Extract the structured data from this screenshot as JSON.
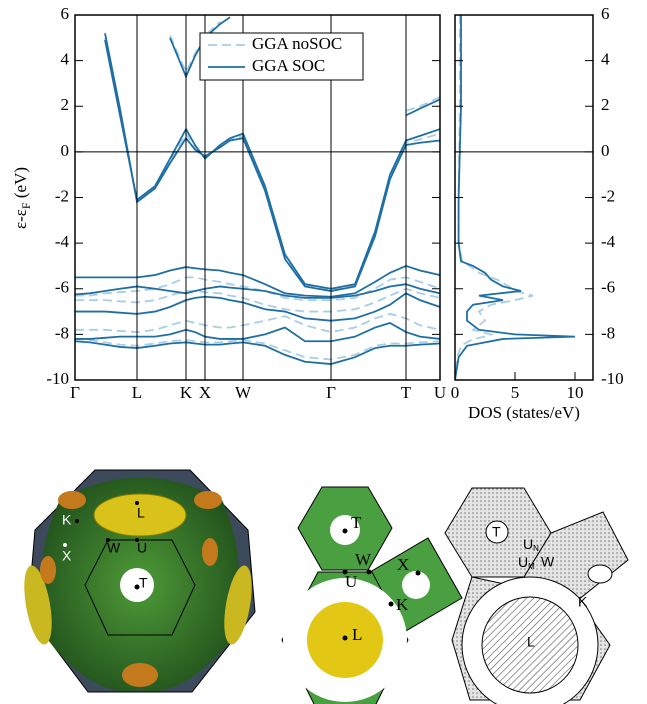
{
  "chart_data": [
    {
      "type": "line",
      "y_label": [
        "ε-ε",
        "F",
        " (eV)"
      ],
      "x": [
        0,
        0.15,
        0.3,
        0.45,
        0.62,
        0.8,
        0.95,
        1.11,
        1.2,
        1.3,
        1.45,
        1.55,
        1.68,
        1.9,
        2.1,
        2.3,
        2.56,
        2.8,
        3.0,
        3.15,
        3.31,
        3.45,
        3.65
      ],
      "xlim": [
        0,
        3.65
      ],
      "xticks": [
        {
          "value": 0,
          "label": "Γ"
        },
        {
          "value": 0.62,
          "label": "L"
        },
        {
          "value": 1.11,
          "label": "K"
        },
        {
          "value": 1.3,
          "label": "X"
        },
        {
          "value": 1.68,
          "label": "W"
        },
        {
          "value": 2.56,
          "label": "Γ"
        },
        {
          "value": 3.31,
          "label": "T"
        },
        {
          "value": 3.65,
          "label": "U"
        }
      ],
      "ylim": [
        -10,
        6
      ],
      "yticks": [
        -10,
        -8,
        -6,
        -4,
        -2,
        0,
        2,
        4,
        6
      ],
      "legend": "upper-center",
      "series": [
        {
          "name": "GGA noSOC",
          "color": "#a9cde6",
          "dashed": true,
          "bands": [
            [
              -8.2,
              -8.25,
              -8.35,
              -8.45,
              -8.5,
              -8.4,
              -8.3,
              -8.25,
              -8.3,
              -8.35,
              -8.35,
              -8.3,
              -8.25,
              -8.4,
              -8.7,
              -9.0,
              -9.1,
              -8.9,
              -8.5,
              -8.4,
              -8.4,
              -8.35,
              -8.3
            ],
            [
              -7.8,
              -7.8,
              -7.8,
              -7.85,
              -7.9,
              -7.8,
              -7.6,
              -7.4,
              -7.5,
              -7.6,
              -7.7,
              -7.7,
              -7.6,
              -7.4,
              -7.2,
              -7.6,
              -7.9,
              -7.7,
              -7.3,
              -7.1,
              -7.3,
              -7.6,
              -7.8
            ],
            [
              -6.5,
              -6.5,
              -6.5,
              -6.55,
              -6.6,
              -6.5,
              -6.3,
              -6.1,
              -6.1,
              -6.15,
              -6.2,
              -6.3,
              -6.4,
              -6.7,
              -6.9,
              -7.0,
              -7.0,
              -6.9,
              -6.6,
              -6.3,
              -6.0,
              -6.2,
              -6.4
            ],
            [
              -6.3,
              -6.3,
              -6.2,
              -6.15,
              -6.1,
              -6.0,
              -5.8,
              -5.5,
              -5.5,
              -5.6,
              -5.7,
              -5.8,
              -5.9,
              -6.1,
              -6.4,
              -6.5,
              -6.5,
              -6.4,
              -6.0,
              -5.6,
              -5.5,
              -5.7,
              -6.0
            ],
            [
              null,
              null,
              5.0,
              1.7,
              -2.2,
              -1.6,
              -0.4,
              0.8,
              0.2,
              -0.2,
              0.25,
              0.55,
              0.7,
              -1.6,
              -4.6,
              -5.85,
              -6.05,
              -5.85,
              -3.6,
              -1.1,
              0.4,
              0.55,
              0.8
            ],
            [
              null,
              null,
              null,
              null,
              null,
              null,
              5.1,
              3.5,
              4.3,
              5.1,
              5.7,
              null,
              null,
              null,
              null,
              null,
              null,
              null,
              null,
              null,
              1.8,
              2.0,
              2.4
            ]
          ]
        },
        {
          "name": "GGA SOC",
          "color": "#1f6fa3",
          "dashed": false,
          "bands": [
            [
              -8.3,
              -8.35,
              -8.45,
              -8.55,
              -8.6,
              -8.5,
              -8.4,
              -8.35,
              -8.4,
              -8.45,
              -8.45,
              -8.4,
              -8.35,
              -8.5,
              -8.9,
              -9.2,
              -9.3,
              -9.0,
              -8.6,
              -8.5,
              -8.5,
              -8.45,
              -8.4
            ],
            [
              -8.2,
              -8.2,
              -8.15,
              -8.1,
              -8.1,
              -8.1,
              -8.0,
              -7.8,
              -7.9,
              -8.1,
              -8.2,
              -8.2,
              -8.2,
              -8.0,
              -7.7,
              -8.3,
              -8.3,
              -8.1,
              -7.7,
              -7.5,
              -7.9,
              -8.1,
              -8.2
            ],
            [
              -7.0,
              -7.0,
              -7.0,
              -7.05,
              -7.1,
              -7.0,
              -6.8,
              -6.5,
              -6.4,
              -6.35,
              -6.4,
              -6.5,
              -6.6,
              -6.9,
              -7.0,
              -7.3,
              -7.4,
              -7.3,
              -7.0,
              -6.7,
              -6.2,
              -6.5,
              -6.8
            ],
            [
              -6.25,
              -6.2,
              -6.1,
              -6.0,
              -5.9,
              -6.0,
              -6.1,
              -6.2,
              -6.1,
              -6.0,
              -5.9,
              -5.95,
              -6.0,
              -6.1,
              -6.3,
              -6.4,
              -6.4,
              -6.3,
              -6.1,
              -5.9,
              -5.8,
              -6.0,
              -6.2
            ],
            [
              -5.5,
              -5.5,
              -5.5,
              -5.5,
              -5.5,
              -5.4,
              -5.2,
              -5.05,
              -5.1,
              -5.15,
              -5.2,
              -5.3,
              -5.4,
              -5.8,
              -6.2,
              -6.3,
              -6.35,
              -6.2,
              -5.7,
              -5.3,
              -5.0,
              -5.2,
              -5.4
            ],
            [
              null,
              null,
              4.9,
              1.6,
              -2.1,
              -1.5,
              -0.3,
              1.0,
              0.3,
              -0.3,
              0.3,
              0.6,
              0.8,
              -1.5,
              -4.5,
              -5.8,
              -6.0,
              -5.8,
              -3.5,
              -1.0,
              0.5,
              0.7,
              1.0
            ],
            [
              null,
              null,
              5.2,
              1.9,
              -2.2,
              -1.6,
              -0.5,
              0.6,
              0.1,
              -0.2,
              0.2,
              0.5,
              0.6,
              -1.7,
              -4.7,
              -5.9,
              -6.1,
              -5.9,
              -3.7,
              -1.2,
              0.3,
              0.4,
              0.5
            ],
            [
              null,
              null,
              null,
              null,
              null,
              null,
              5.0,
              3.3,
              4.2,
              5.0,
              5.6,
              5.9,
              null,
              null,
              null,
              null,
              null,
              null,
              null,
              null,
              1.6,
              1.9,
              2.3
            ]
          ]
        }
      ]
    },
    {
      "type": "line",
      "orientation": "horizontal",
      "x_label": "DOS (states/eV)",
      "energies": [
        6,
        2,
        0,
        -2,
        -4,
        -4.8,
        -5.0,
        -5.3,
        -5.6,
        -5.9,
        -6.1,
        -6.3,
        -6.5,
        -6.7,
        -7.0,
        -7.4,
        -7.8,
        -8.0,
        -8.1,
        -8.2,
        -8.5,
        -9,
        -10
      ],
      "xlim": [
        0,
        11.5
      ],
      "xticks": [
        0,
        5,
        10
      ],
      "ylim": [
        -10,
        6
      ],
      "yticks": [
        -10,
        -8,
        -6,
        -4,
        -2,
        0,
        2,
        4,
        6
      ],
      "series": [
        {
          "name": "GGA noSOC",
          "color": "#a9cde6",
          "dashed": true,
          "values": [
            0.4,
            0.4,
            0.35,
            0.3,
            0.3,
            0.6,
            1.2,
            2,
            3.5,
            4.5,
            5,
            6.5,
            5,
            3,
            2,
            2.5,
            1.5,
            3,
            2.5,
            1.5,
            0.5,
            0.2,
            0
          ]
        },
        {
          "name": "GGA SOC",
          "color": "#1f6fa3",
          "dashed": false,
          "values": [
            0.5,
            0.5,
            0.4,
            0.3,
            0.3,
            0.5,
            1.5,
            2.5,
            3,
            4,
            5.5,
            2,
            4,
            1.5,
            1,
            1,
            2,
            5,
            10,
            4,
            1,
            0.3,
            0
          ]
        }
      ]
    }
  ],
  "figures": {
    "fermi_surface": {
      "labels": [
        "K",
        "X",
        "W",
        "U",
        "T",
        "L"
      ]
    },
    "cross_section": {
      "labels": [
        "T",
        "W",
        "X",
        "U",
        "K",
        "L"
      ]
    },
    "reference": {
      "labels": [
        "T",
        [
          "U",
          "N"
        ],
        [
          "U",
          "M"
        ],
        "W",
        "K",
        "L"
      ]
    }
  }
}
